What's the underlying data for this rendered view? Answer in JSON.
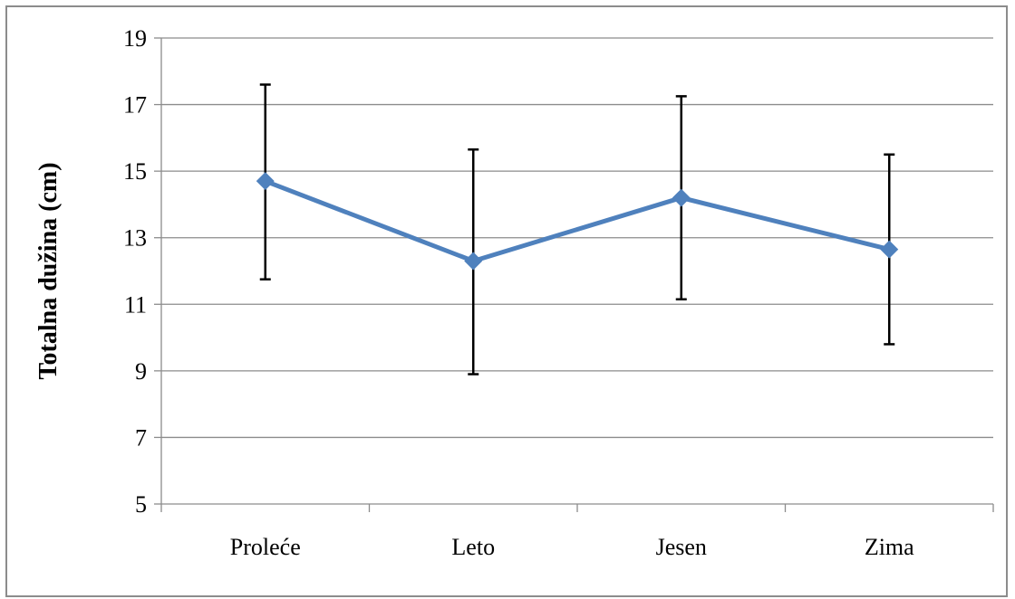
{
  "chart_data": {
    "type": "line",
    "title": "",
    "xlabel": "",
    "ylabel": "Totalna dužina (cm)",
    "categories": [
      "Proleće",
      "Leto",
      "Jesen",
      "Zima"
    ],
    "series": [
      {
        "values": [
          14.7,
          12.3,
          14.2,
          12.65
        ],
        "error_low": [
          11.75,
          8.9,
          11.15,
          9.8
        ],
        "error_high": [
          17.6,
          15.65,
          17.25,
          15.5
        ],
        "color": "#4F81BD",
        "marker": "diamond"
      }
    ],
    "ylim": [
      5,
      19
    ],
    "yticks": [
      "5",
      "7",
      "9",
      "11",
      "13",
      "15",
      "17",
      "19"
    ],
    "grid": true,
    "legend": "none",
    "error_bar_color": "#000000",
    "gridline_color": "#8c8c8c"
  }
}
